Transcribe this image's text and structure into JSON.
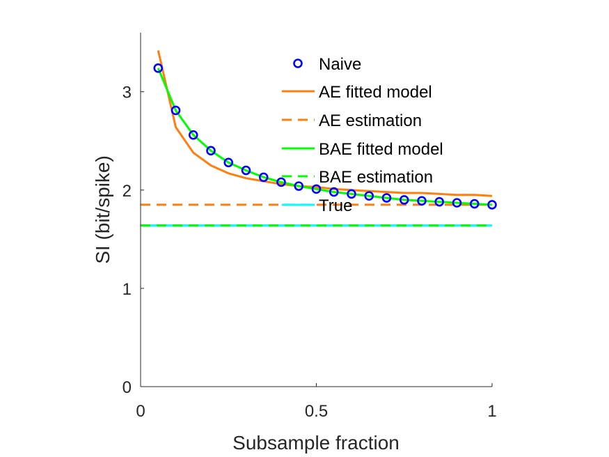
{
  "chart_data": {
    "type": "line",
    "title": "",
    "xlabel": "Subsample fraction",
    "ylabel": "SI (bit/spike)",
    "xlim": [
      0,
      1
    ],
    "ylim": [
      0,
      3.6
    ],
    "xticks": [
      0,
      0.5,
      1
    ],
    "xtick_labels": [
      "0",
      "0.5",
      "1"
    ],
    "yticks": [
      0,
      1,
      2,
      3
    ],
    "ytick_labels": [
      "0",
      "1",
      "2",
      "3"
    ],
    "grid": false,
    "legend_position": "top-right",
    "series": [
      {
        "name": "Naive",
        "style": "markers",
        "color": "#0000ff",
        "x": [
          0.05,
          0.1,
          0.15,
          0.2,
          0.25,
          0.3,
          0.35,
          0.4,
          0.45,
          0.5,
          0.55,
          0.6,
          0.65,
          0.7,
          0.75,
          0.8,
          0.85,
          0.9,
          0.95,
          1.0
        ],
        "y": [
          3.24,
          2.81,
          2.56,
          2.4,
          2.28,
          2.2,
          2.13,
          2.08,
          2.04,
          2.01,
          1.98,
          1.96,
          1.94,
          1.92,
          1.9,
          1.89,
          1.88,
          1.87,
          1.86,
          1.85
        ]
      },
      {
        "name": "AE fitted model",
        "style": "solid",
        "color": "#ff7f0e",
        "x": [
          0.05,
          0.1,
          0.15,
          0.2,
          0.25,
          0.3,
          0.35,
          0.4,
          0.45,
          0.5,
          0.55,
          0.6,
          0.65,
          0.7,
          0.75,
          0.8,
          0.85,
          0.9,
          0.95,
          1.0
        ],
        "y": [
          3.42,
          2.64,
          2.38,
          2.25,
          2.17,
          2.12,
          2.09,
          2.06,
          2.04,
          2.03,
          2.01,
          2.0,
          1.99,
          1.98,
          1.97,
          1.97,
          1.96,
          1.95,
          1.95,
          1.94
        ]
      },
      {
        "name": "AE estimation",
        "style": "dashed",
        "color": "#ff7f0e",
        "x": [
          0,
          1
        ],
        "y": [
          1.85,
          1.85
        ]
      },
      {
        "name": "BAE fitted model",
        "style": "solid",
        "color": "#00ff00",
        "x": [
          0.05,
          0.1,
          0.15,
          0.2,
          0.25,
          0.3,
          0.35,
          0.4,
          0.45,
          0.5,
          0.55,
          0.6,
          0.65,
          0.7,
          0.75,
          0.8,
          0.85,
          0.9,
          0.95,
          1.0
        ],
        "y": [
          3.24,
          2.81,
          2.56,
          2.4,
          2.28,
          2.2,
          2.13,
          2.08,
          2.04,
          2.01,
          1.98,
          1.96,
          1.94,
          1.92,
          1.9,
          1.89,
          1.88,
          1.87,
          1.86,
          1.85
        ]
      },
      {
        "name": "BAE estimation",
        "style": "dashed",
        "color": "#00ff00",
        "x": [
          0,
          1
        ],
        "y": [
          1.64,
          1.64
        ]
      },
      {
        "name": "True",
        "style": "solid",
        "color": "#00ffff",
        "x": [
          0,
          1
        ],
        "y": [
          1.64,
          1.64
        ]
      }
    ]
  }
}
